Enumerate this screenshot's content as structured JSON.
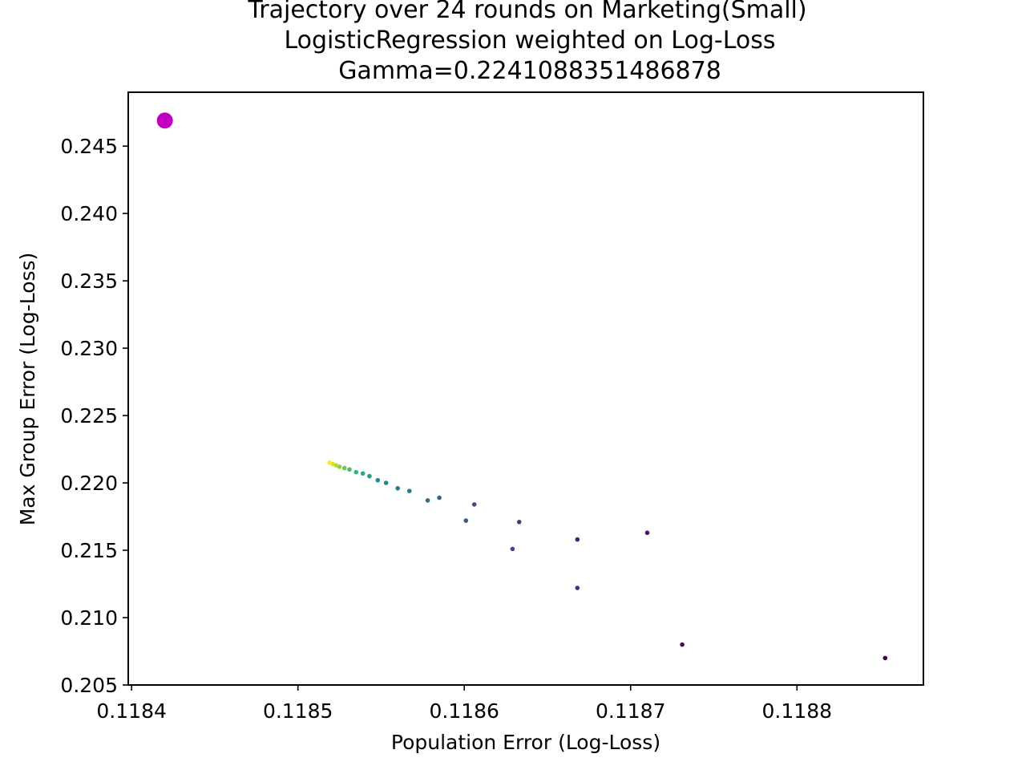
{
  "chart_data": {
    "type": "scatter",
    "title_lines": [
      "Trajectory over 24 rounds on Marketing(Small)",
      "LogisticRegression weighted on Log-Loss",
      "Gamma=0.2241088351486878"
    ],
    "xlabel": "Population Error (Log-Loss)",
    "ylabel": "Max Group Error (Log-Loss)",
    "xlim": [
      0.118398,
      0.118876
    ],
    "ylim": [
      0.205,
      0.249
    ],
    "xticks": [
      0.1184,
      0.1185,
      0.1186,
      0.1187,
      0.1188
    ],
    "xtick_labels": [
      "0.1184",
      "0.1185",
      "0.1186",
      "0.1187",
      "0.1188"
    ],
    "yticks": [
      0.205,
      0.21,
      0.215,
      0.22,
      0.225,
      0.23,
      0.235,
      0.24,
      0.245
    ],
    "ytick_labels": [
      "0.205",
      "0.210",
      "0.215",
      "0.220",
      "0.225",
      "0.230",
      "0.235",
      "0.240",
      "0.245"
    ],
    "grid": false,
    "colormap": "viridis",
    "highlight_color": "#c000c0",
    "points": [
      {
        "round": 1,
        "x": 0.118853,
        "y": 0.207
      },
      {
        "round": 2,
        "x": 0.118731,
        "y": 0.208
      },
      {
        "round": 3,
        "x": 0.11871,
        "y": 0.2163
      },
      {
        "round": 4,
        "x": 0.118668,
        "y": 0.2158
      },
      {
        "round": 5,
        "x": 0.118668,
        "y": 0.2122
      },
      {
        "round": 6,
        "x": 0.118633,
        "y": 0.2171
      },
      {
        "round": 7,
        "x": 0.118629,
        "y": 0.2151
      },
      {
        "round": 8,
        "x": 0.118606,
        "y": 0.2184
      },
      {
        "round": 9,
        "x": 0.118601,
        "y": 0.2172
      },
      {
        "round": 10,
        "x": 0.118585,
        "y": 0.2189
      },
      {
        "round": 11,
        "x": 0.118578,
        "y": 0.2187
      },
      {
        "round": 12,
        "x": 0.118567,
        "y": 0.2194
      },
      {
        "round": 13,
        "x": 0.11856,
        "y": 0.2196
      },
      {
        "round": 14,
        "x": 0.118553,
        "y": 0.22
      },
      {
        "round": 15,
        "x": 0.118548,
        "y": 0.2202
      },
      {
        "round": 16,
        "x": 0.118543,
        "y": 0.2205
      },
      {
        "round": 17,
        "x": 0.118539,
        "y": 0.2207
      },
      {
        "round": 18,
        "x": 0.118535,
        "y": 0.2208
      },
      {
        "round": 19,
        "x": 0.118531,
        "y": 0.221
      },
      {
        "round": 20,
        "x": 0.118528,
        "y": 0.2211
      },
      {
        "round": 21,
        "x": 0.118525,
        "y": 0.2212
      },
      {
        "round": 22,
        "x": 0.118523,
        "y": 0.2213
      },
      {
        "round": 23,
        "x": 0.118521,
        "y": 0.2214
      },
      {
        "round": 24,
        "x": 0.118519,
        "y": 0.2215
      }
    ],
    "highlight_point": {
      "x": 0.11842,
      "y": 0.2469
    }
  }
}
